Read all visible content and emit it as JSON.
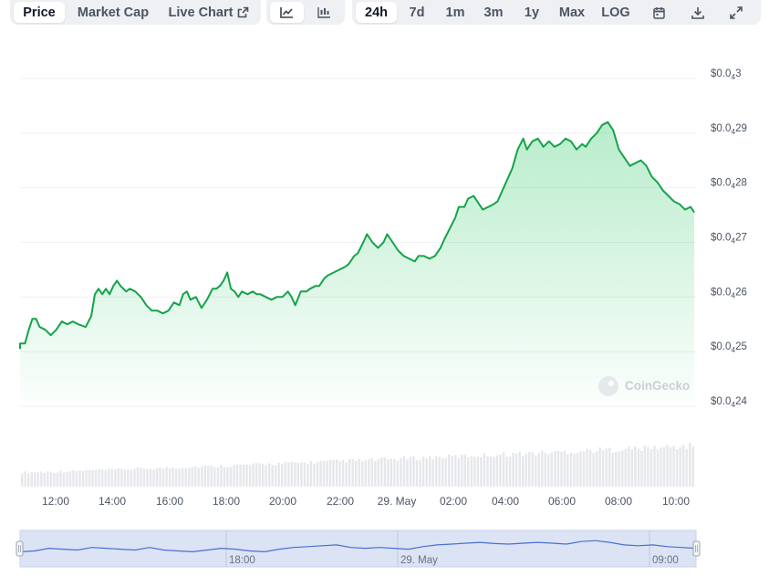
{
  "toolbar": {
    "metric_tabs": [
      {
        "label": "Price",
        "active": true
      },
      {
        "label": "Market Cap",
        "active": false
      },
      {
        "label": "Live Chart",
        "active": false
      }
    ],
    "chart_type_icons": [
      "line-chart-icon",
      "candlestick-chart-icon"
    ],
    "range_tabs": [
      {
        "label": "24h",
        "active": true
      },
      {
        "label": "7d",
        "active": false
      },
      {
        "label": "1m",
        "active": false
      },
      {
        "label": "3m",
        "active": false
      },
      {
        "label": "1y",
        "active": false
      },
      {
        "label": "Max",
        "active": false
      }
    ],
    "log_label": "LOG",
    "action_icons": [
      "calendar-icon",
      "download-icon",
      "expand-icon"
    ]
  },
  "watermark": "CoinGecko",
  "colors": {
    "line": "#16a34a",
    "area_top": "#22c55e",
    "volume": "#e5e7eb",
    "navigator_fill": "#dbe3f4",
    "navigator_line": "#4a6fd1",
    "grid": "#eef0f3"
  },
  "chart_data": {
    "type": "area",
    "y_axis": {
      "prefix": "$0.0",
      "subscript": "4",
      "tick_values": [
        3,
        29,
        28,
        27,
        26,
        25,
        24
      ],
      "ticks": [
        {
          "sig": "3",
          "value": 3e-05
        },
        {
          "sig": "29",
          "value": 2.9e-05
        },
        {
          "sig": "28",
          "value": 2.8e-05
        },
        {
          "sig": "27",
          "value": 2.7e-05
        },
        {
          "sig": "26",
          "value": 2.6e-05
        },
        {
          "sig": "25",
          "value": 2.5e-05
        },
        {
          "sig": "24",
          "value": 2.4e-05
        }
      ],
      "ylim": [
        2.4e-05,
        3e-05
      ]
    },
    "x_axis": {
      "tick_labels": [
        "12:00",
        "14:00",
        "16:00",
        "18:00",
        "20:00",
        "22:00",
        "29. May",
        "02:00",
        "04:00",
        "06:00",
        "08:00",
        "10:00"
      ],
      "range_hours": [
        -0.5,
        23.4
      ]
    },
    "series": [
      {
        "name": "Price",
        "points": [
          [
            -0.5,
            24.95
          ],
          [
            -0.4,
            25.05
          ],
          [
            -0.25,
            25.05
          ],
          [
            -0.15,
            25.3
          ],
          [
            -0.05,
            25.5
          ],
          [
            0.05,
            25.5
          ],
          [
            0.15,
            25.35
          ],
          [
            0.3,
            25.3
          ],
          [
            0.45,
            25.2
          ],
          [
            0.6,
            25.3
          ],
          [
            0.75,
            25.45
          ],
          [
            0.9,
            25.4
          ],
          [
            1.05,
            25.45
          ],
          [
            1.2,
            25.4
          ],
          [
            1.4,
            25.35
          ],
          [
            1.55,
            25.55
          ],
          [
            1.65,
            25.95
          ],
          [
            1.75,
            26.05
          ],
          [
            1.85,
            25.95
          ],
          [
            1.95,
            26.05
          ],
          [
            2.05,
            25.95
          ],
          [
            2.15,
            26.1
          ],
          [
            2.25,
            26.2
          ],
          [
            2.35,
            26.1
          ],
          [
            2.5,
            26.0
          ],
          [
            2.6,
            26.05
          ],
          [
            2.75,
            26.0
          ],
          [
            2.9,
            25.9
          ],
          [
            3.05,
            25.75
          ],
          [
            3.2,
            25.65
          ],
          [
            3.35,
            25.65
          ],
          [
            3.5,
            25.6
          ],
          [
            3.65,
            25.65
          ],
          [
            3.8,
            25.8
          ],
          [
            3.95,
            25.75
          ],
          [
            4.05,
            25.95
          ],
          [
            4.15,
            26.0
          ],
          [
            4.25,
            25.85
          ],
          [
            4.4,
            25.9
          ],
          [
            4.55,
            25.7
          ],
          [
            4.7,
            25.85
          ],
          [
            4.85,
            26.05
          ],
          [
            4.95,
            26.05
          ],
          [
            5.05,
            26.1
          ],
          [
            5.15,
            26.2
          ],
          [
            5.25,
            26.35
          ],
          [
            5.35,
            26.05
          ],
          [
            5.45,
            26.0
          ],
          [
            5.55,
            25.9
          ],
          [
            5.65,
            26.0
          ],
          [
            5.8,
            25.95
          ],
          [
            5.95,
            26.0
          ],
          [
            6.05,
            25.95
          ],
          [
            6.15,
            25.95
          ],
          [
            6.3,
            25.9
          ],
          [
            6.45,
            25.85
          ],
          [
            6.6,
            25.9
          ],
          [
            6.75,
            25.9
          ],
          [
            6.9,
            26.0
          ],
          [
            7.0,
            25.9
          ],
          [
            7.1,
            25.75
          ],
          [
            7.25,
            26.0
          ],
          [
            7.4,
            26.0
          ],
          [
            7.5,
            26.05
          ],
          [
            7.65,
            26.1
          ],
          [
            7.75,
            26.1
          ],
          [
            7.9,
            26.25
          ],
          [
            8.0,
            26.3
          ],
          [
            8.15,
            26.35
          ],
          [
            8.3,
            26.4
          ],
          [
            8.45,
            26.45
          ],
          [
            8.55,
            26.5
          ],
          [
            8.7,
            26.65
          ],
          [
            8.8,
            26.7
          ],
          [
            8.95,
            26.9
          ],
          [
            9.05,
            27.05
          ],
          [
            9.2,
            26.9
          ],
          [
            9.35,
            26.8
          ],
          [
            9.5,
            26.9
          ],
          [
            9.6,
            27.05
          ],
          [
            9.75,
            26.9
          ],
          [
            9.9,
            26.75
          ],
          [
            10.05,
            26.65
          ],
          [
            10.2,
            26.6
          ],
          [
            10.35,
            26.55
          ],
          [
            10.45,
            26.65
          ],
          [
            10.6,
            26.65
          ],
          [
            10.75,
            26.6
          ],
          [
            10.9,
            26.65
          ],
          [
            11.05,
            26.8
          ],
          [
            11.15,
            26.95
          ],
          [
            11.3,
            27.15
          ],
          [
            11.45,
            27.35
          ],
          [
            11.55,
            27.55
          ],
          [
            11.7,
            27.55
          ],
          [
            11.8,
            27.7
          ],
          [
            11.95,
            27.75
          ],
          [
            12.1,
            27.6
          ],
          [
            12.2,
            27.5
          ],
          [
            12.35,
            27.55
          ],
          [
            12.5,
            27.6
          ],
          [
            12.6,
            27.65
          ],
          [
            12.8,
            27.95
          ],
          [
            13.0,
            28.25
          ],
          [
            13.15,
            28.6
          ],
          [
            13.3,
            28.8
          ],
          [
            13.4,
            28.6
          ],
          [
            13.55,
            28.75
          ],
          [
            13.7,
            28.8
          ],
          [
            13.85,
            28.65
          ],
          [
            14.0,
            28.75
          ],
          [
            14.15,
            28.65
          ],
          [
            14.3,
            28.7
          ],
          [
            14.45,
            28.8
          ],
          [
            14.6,
            28.75
          ],
          [
            14.75,
            28.6
          ],
          [
            14.9,
            28.7
          ],
          [
            15.0,
            28.65
          ],
          [
            15.15,
            28.8
          ],
          [
            15.3,
            28.9
          ],
          [
            15.45,
            29.05
          ],
          [
            15.6,
            29.1
          ],
          [
            15.75,
            28.95
          ],
          [
            15.9,
            28.6
          ],
          [
            16.05,
            28.45
          ],
          [
            16.2,
            28.3
          ],
          [
            16.35,
            28.35
          ],
          [
            16.5,
            28.4
          ],
          [
            16.65,
            28.3
          ],
          [
            16.8,
            28.1
          ],
          [
            16.95,
            28.0
          ],
          [
            17.1,
            27.85
          ],
          [
            17.25,
            27.75
          ],
          [
            17.4,
            27.65
          ],
          [
            17.55,
            27.6
          ],
          [
            17.7,
            27.5
          ],
          [
            17.85,
            27.55
          ],
          [
            17.95,
            27.45
          ]
        ]
      }
    ],
    "volume": {
      "x_range_hours": [
        -0.5,
        23.4
      ],
      "min_relative": 0.35,
      "max_relative": 1.0
    },
    "navigator": {
      "tick_labels": [
        "18:00",
        "29. May",
        "09:00"
      ]
    }
  }
}
